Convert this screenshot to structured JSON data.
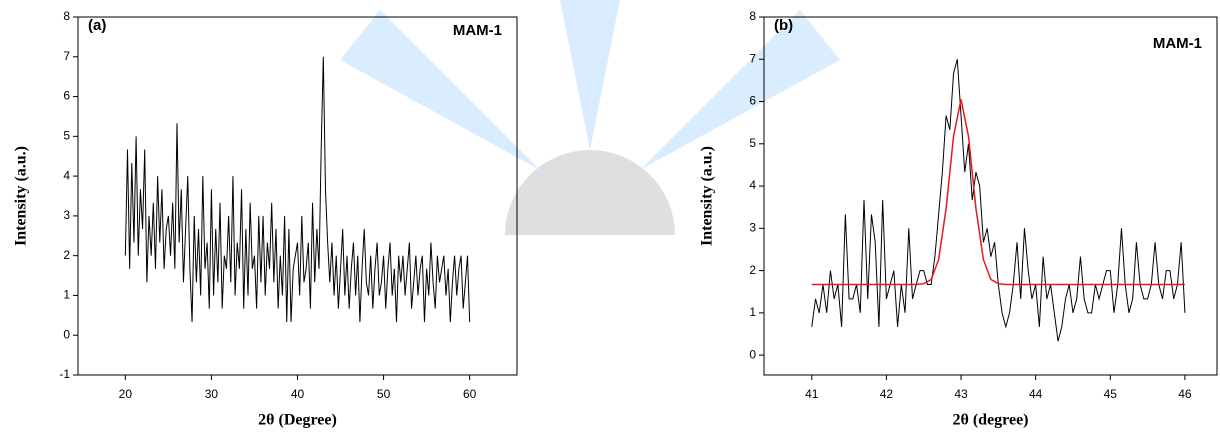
{
  "chart_data": [
    {
      "type": "line",
      "panel_label": "(a)",
      "annotation": "MAM-1",
      "xlabel": "2θ (Degree)",
      "ylabel": "Intensity (a.u.)",
      "xlim": [
        14.5,
        65.5
      ],
      "xticks": [
        20,
        30,
        40,
        50,
        60
      ],
      "ylim": [
        -1,
        8
      ],
      "yticks": [
        -1,
        0,
        1,
        2,
        3,
        4,
        5,
        6,
        7,
        8
      ],
      "x": [
        20,
        20.25,
        20.5,
        20.75,
        21,
        21.25,
        21.5,
        21.75,
        22,
        22.25,
        22.5,
        22.75,
        23,
        23.25,
        23.5,
        23.75,
        24,
        24.25,
        24.5,
        24.75,
        25,
        25.25,
        25.5,
        25.75,
        26,
        26.25,
        26.5,
        26.75,
        27,
        27.25,
        27.5,
        27.75,
        28,
        28.25,
        28.5,
        28.75,
        29,
        29.25,
        29.5,
        29.75,
        30,
        30.25,
        30.5,
        30.75,
        31,
        31.25,
        31.5,
        31.75,
        32,
        32.25,
        32.5,
        32.75,
        33,
        33.25,
        33.5,
        33.75,
        34,
        34.25,
        34.5,
        34.75,
        35,
        35.25,
        35.5,
        35.75,
        36,
        36.25,
        36.5,
        36.75,
        37,
        37.25,
        37.5,
        37.75,
        38,
        38.25,
        38.5,
        38.75,
        39,
        39.25,
        39.5,
        39.75,
        40,
        40.25,
        40.5,
        40.75,
        41,
        41.25,
        41.5,
        41.75,
        42,
        42.25,
        42.5,
        42.75,
        43,
        43.25,
        43.5,
        43.75,
        44,
        44.25,
        44.5,
        44.75,
        45,
        45.25,
        45.5,
        45.75,
        46,
        46.25,
        46.5,
        46.75,
        47,
        47.25,
        47.5,
        47.75,
        48,
        48.25,
        48.5,
        48.75,
        49,
        49.25,
        49.5,
        49.75,
        50,
        50.25,
        50.5,
        50.75,
        51,
        51.25,
        51.5,
        51.75,
        52,
        52.25,
        52.5,
        52.75,
        53,
        53.25,
        53.5,
        53.75,
        54,
        54.25,
        54.5,
        54.75,
        55,
        55.25,
        55.5,
        55.75,
        56,
        56.25,
        56.5,
        56.75,
        57,
        57.25,
        57.5,
        57.75,
        58,
        58.25,
        58.5,
        58.75,
        59,
        59.25,
        59.5,
        59.75,
        60
      ],
      "series": [
        {
          "color": "#000000",
          "values": [
            2,
            4.67,
            1.67,
            4.33,
            2.33,
            5,
            2,
            3.67,
            2.67,
            4.67,
            1.33,
            3,
            2,
            3.33,
            1.67,
            4,
            2.33,
            3.67,
            1.67,
            2.67,
            3,
            2,
            3.33,
            1.67,
            5.33,
            2.33,
            3.67,
            1.33,
            2.67,
            4,
            1.67,
            0.33,
            3,
            1.33,
            2.67,
            1,
            4,
            1.67,
            2.33,
            0.67,
            3.67,
            1,
            2.67,
            1.33,
            3.33,
            0.67,
            2,
            1.67,
            3,
            1.33,
            4,
            1,
            2.33,
            1.67,
            3.67,
            0.67,
            2.67,
            1,
            3.33,
            1.67,
            2,
            0.67,
            3,
            1.33,
            3,
            1,
            2.33,
            1.67,
            3.33,
            1.33,
            2.67,
            0.67,
            2,
            1,
            3,
            0.33,
            2.67,
            0.33,
            1.67,
            2,
            2.33,
            1,
            3,
            1.33,
            1.67,
            2.33,
            0.67,
            3.33,
            1.33,
            2.67,
            1.67,
            4.67,
            7,
            3.67,
            2.33,
            1.33,
            2.33,
            1,
            2,
            0.67,
            1.67,
            2.67,
            1,
            2,
            0.67,
            1.67,
            2.33,
            1,
            2,
            0.33,
            1.67,
            2.67,
            1.33,
            1,
            2,
            0.67,
            1.67,
            2.33,
            1,
            1.33,
            2,
            0.67,
            1.67,
            2.33,
            1,
            1.67,
            0.33,
            2,
            1.33,
            2,
            1,
            1.67,
            2.33,
            0.67,
            1.33,
            2,
            1,
            1.67,
            2,
            0.33,
            1.67,
            1,
            2.33,
            1.33,
            0.67,
            2,
            1.33,
            1.67,
            2,
            1,
            1.67,
            0.33,
            1.33,
            2,
            1,
            1.67,
            2,
            0.67,
            1.33,
            2,
            0.33
          ]
        }
      ]
    },
    {
      "type": "line",
      "panel_label": "(b)",
      "annotation": "MAM-1",
      "xlabel": "2θ (degree)",
      "ylabel": "Intensity (a.u.)",
      "xlim": [
        40.36,
        46.43
      ],
      "xticks": [
        41,
        42,
        43,
        44,
        45,
        46
      ],
      "ylim": [
        -0.47,
        8
      ],
      "yticks": [
        0,
        1,
        2,
        3,
        4,
        5,
        6,
        7,
        8
      ],
      "x": [
        41,
        41.05,
        41.1,
        41.15,
        41.2,
        41.25,
        41.3,
        41.35,
        41.4,
        41.45,
        41.5,
        41.55,
        41.6,
        41.65,
        41.7,
        41.75,
        41.8,
        41.85,
        41.9,
        41.95,
        42,
        42.05,
        42.1,
        42.15,
        42.2,
        42.25,
        42.3,
        42.35,
        42.4,
        42.45,
        42.5,
        42.55,
        42.6,
        42.65,
        42.7,
        42.75,
        42.8,
        42.85,
        42.9,
        42.95,
        43,
        43.05,
        43.1,
        43.15,
        43.2,
        43.25,
        43.3,
        43.35,
        43.4,
        43.45,
        43.5,
        43.55,
        43.6,
        43.65,
        43.7,
        43.75,
        43.8,
        43.85,
        43.9,
        43.95,
        44,
        44.05,
        44.1,
        44.15,
        44.2,
        44.25,
        44.3,
        44.35,
        44.4,
        44.45,
        44.5,
        44.55,
        44.6,
        44.65,
        44.7,
        44.75,
        44.8,
        44.85,
        44.9,
        44.95,
        45,
        45.05,
        45.1,
        45.15,
        45.2,
        45.25,
        45.3,
        45.35,
        45.4,
        45.45,
        45.5,
        45.55,
        45.6,
        45.65,
        45.7,
        45.75,
        45.8,
        45.85,
        45.9,
        45.95,
        46
      ],
      "series": [
        {
          "color": "#000000",
          "values": [
            0.67,
            1.33,
            1,
            1.67,
            1,
            2,
            1.33,
            1.67,
            0.67,
            3.33,
            1.33,
            1.33,
            1.67,
            1,
            3.67,
            1.33,
            3.33,
            2.67,
            0.67,
            3.67,
            1.33,
            1.67,
            2,
            0.67,
            1.67,
            1,
            3,
            1.33,
            1.67,
            2,
            2,
            1.67,
            1.67,
            2.33,
            3.33,
            4.33,
            5.67,
            5.33,
            6.67,
            7,
            5.67,
            4.33,
            5,
            3.67,
            4.33,
            4,
            2.67,
            3,
            2.33,
            2.67,
            1.67,
            1,
            0.67,
            1,
            1.67,
            2.67,
            1.33,
            3,
            2,
            1.33,
            1.67,
            0.67,
            2.33,
            1.33,
            1.67,
            1,
            0.33,
            0.67,
            1.33,
            1.67,
            1,
            1.33,
            2.33,
            1.33,
            1,
            1,
            1.67,
            1.33,
            1.67,
            2,
            2,
            1,
            1.67,
            3,
            1.67,
            1,
            1.33,
            2.67,
            1.67,
            1.33,
            1.33,
            1.67,
            2.67,
            1.67,
            1.33,
            2,
            2,
            1.33,
            1.67,
            2.67,
            1
          ]
        },
        {
          "color": "#e41a1c",
          "x": [
            41,
            41.1,
            41.2,
            41.3,
            41.4,
            41.5,
            41.6,
            41.7,
            41.8,
            41.9,
            42,
            42.1,
            42.2,
            42.3,
            42.4,
            42.5,
            42.6,
            42.7,
            42.8,
            42.9,
            43,
            43.1,
            43.2,
            43.3,
            43.4,
            43.5,
            43.6,
            43.7,
            43.8,
            43.9,
            44,
            44.1,
            44.2,
            44.3,
            44.4,
            44.5,
            44.6,
            44.7,
            44.8,
            44.9,
            45,
            45.1,
            45.2,
            45.3,
            45.4,
            45.5,
            45.6,
            45.7,
            45.8,
            45.9,
            46
          ],
          "values": [
            1.67,
            1.67,
            1.67,
            1.67,
            1.67,
            1.67,
            1.67,
            1.67,
            1.67,
            1.67,
            1.67,
            1.67,
            1.67,
            1.67,
            1.67,
            1.69,
            1.79,
            2.26,
            3.47,
            5.18,
            6.05,
            5.18,
            3.47,
            2.26,
            1.79,
            1.69,
            1.67,
            1.67,
            1.67,
            1.67,
            1.67,
            1.67,
            1.67,
            1.67,
            1.67,
            1.67,
            1.67,
            1.67,
            1.67,
            1.67,
            1.67,
            1.67,
            1.67,
            1.67,
            1.67,
            1.67,
            1.67,
            1.67,
            1.67,
            1.67,
            1.67
          ]
        }
      ]
    }
  ]
}
